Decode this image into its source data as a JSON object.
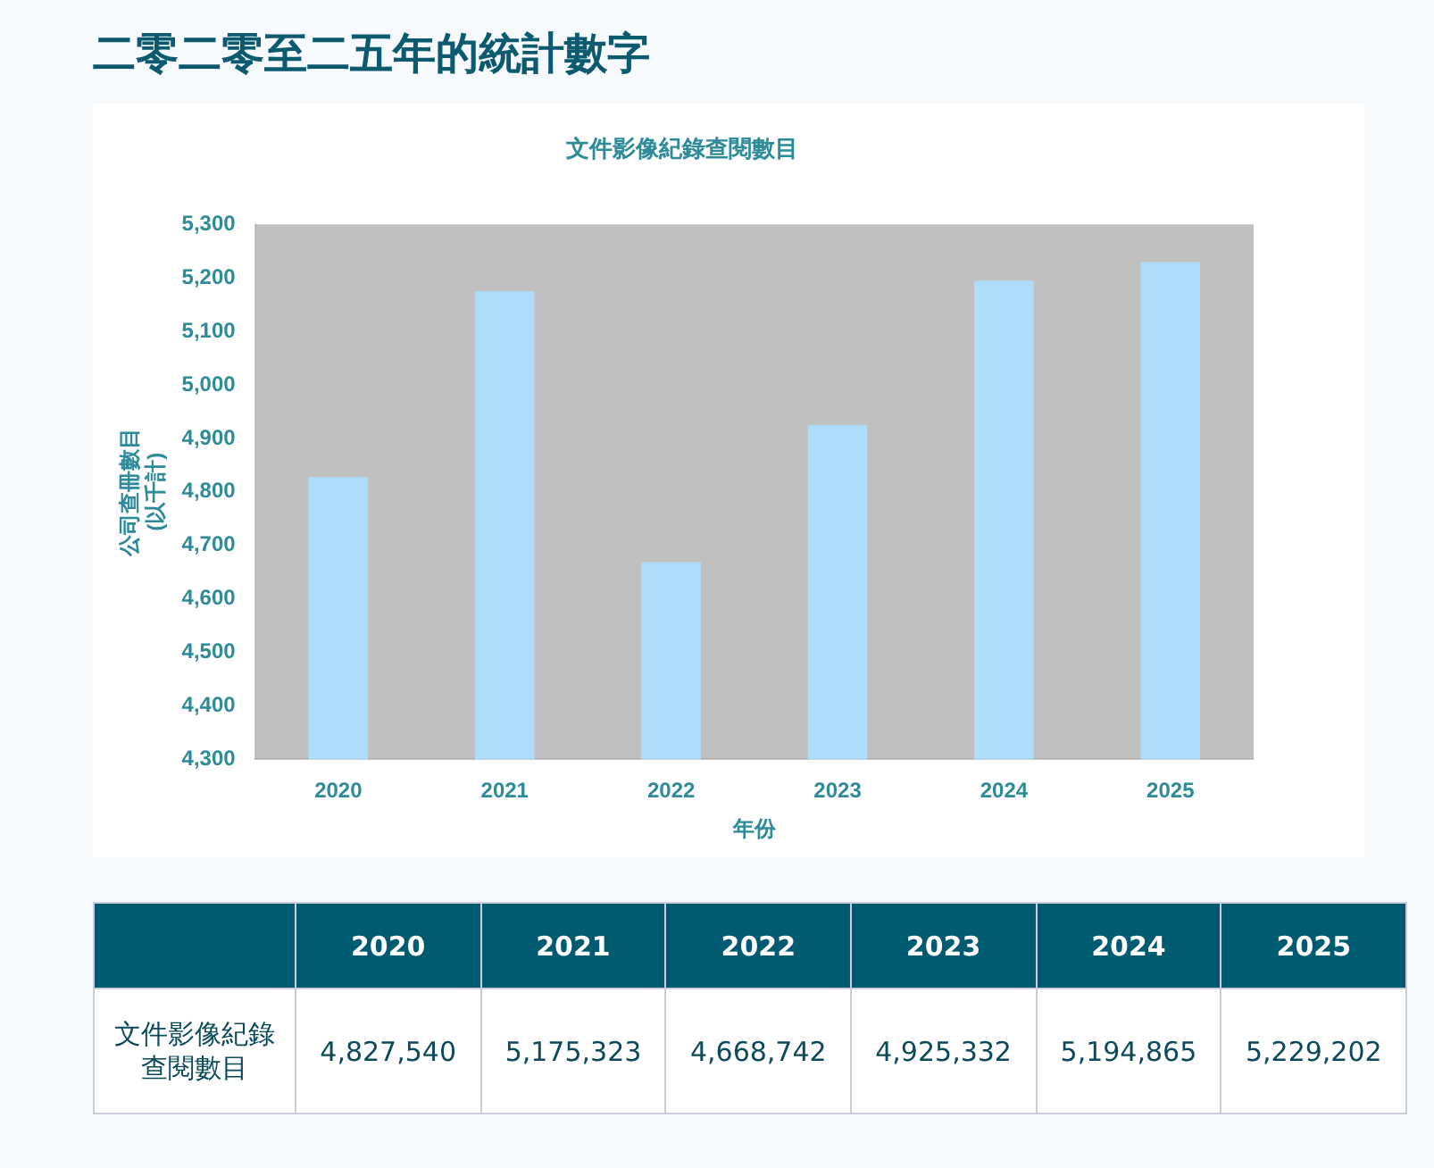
{
  "chart_data": {
    "type": "bar",
    "title": "二零二零至二五年的統計數字",
    "subtitle": "文件影像紀錄查閱數目",
    "xlabel": "年份",
    "ylabel": "公司查冊數目\n(以千計)",
    "categories": [
      "2020",
      "2021",
      "2022",
      "2023",
      "2024",
      "2025"
    ],
    "series": [
      {
        "name": "文件影像紀錄查閱數目",
        "color": "#aedcfb",
        "values": [
          4827.54,
          5175.323,
          4668.742,
          4925.332,
          5194.865,
          5229.202
        ]
      }
    ],
    "annotations": [
      "4,827,540",
      "5,175,323",
      "4,668,742",
      "4,925,332",
      "5,194,865",
      "5,229,202"
    ],
    "ylim": [
      4300,
      5300
    ],
    "yticks": [
      {
        "value": 4300,
        "label": "4,300"
      },
      {
        "value": 4400,
        "label": "4,400"
      },
      {
        "value": 4500,
        "label": "4,500"
      },
      {
        "value": 4600,
        "label": "4,600"
      },
      {
        "value": 4700,
        "label": "4,700"
      },
      {
        "value": 4800,
        "label": "4,800"
      },
      {
        "value": 4900,
        "label": "4,900"
      },
      {
        "value": 5000,
        "label": "5,000"
      },
      {
        "value": 5100,
        "label": "5,100"
      },
      {
        "value": 5200,
        "label": "5,200"
      },
      {
        "value": 5300,
        "label": "5,300"
      }
    ],
    "grid": false,
    "legend": false
  }
}
